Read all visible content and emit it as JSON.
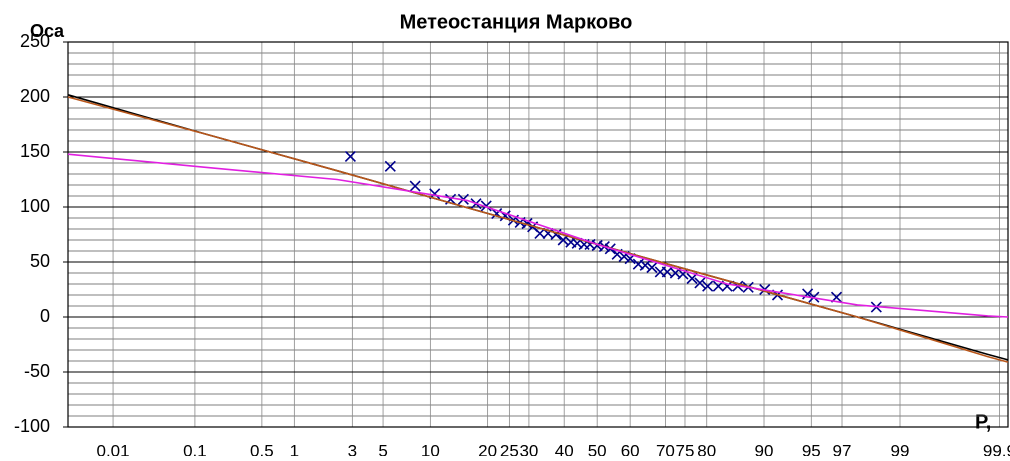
{
  "chart_data": {
    "type": "scatter",
    "title": "Метеостанция Марково",
    "y_label": "Oca",
    "x_label": "P,",
    "x_scale": "probability",
    "xlim": [
      0.0024,
      99.92
    ],
    "xticks": [
      0.01,
      0.1,
      0.5,
      1,
      3,
      5,
      10,
      20,
      25,
      30,
      40,
      50,
      60,
      70,
      75,
      80,
      90,
      95,
      97,
      99,
      99.9
    ],
    "ylim": [
      -100,
      250
    ],
    "yticks": [
      -100,
      -50,
      0,
      50,
      100,
      150,
      200,
      250
    ],
    "y_minor_step": 10,
    "grid": true,
    "series": [
      {
        "style": "marker",
        "color": "#00008b",
        "x": [
          2.9,
          5.6,
          8.1,
          10.6,
          13.0,
          15.2,
          17.6,
          19.7,
          22.0,
          24.0,
          26.0,
          27.7,
          29.5,
          31.0,
          33.0,
          35.3,
          37.6,
          39.7,
          42.0,
          43.9,
          46.0,
          47.8,
          50.0,
          52.2,
          54.0,
          56.1,
          58.2,
          60.0,
          62.4,
          64.4,
          66.3,
          68.6,
          70.5,
          72.6,
          74.5,
          76.7,
          78.5,
          80.2,
          82.4,
          84.1,
          86.0,
          87.7,
          90.1,
          91.7,
          94.7,
          95.2,
          96.7,
          98.4
        ],
        "values": [
          146,
          137,
          119,
          112,
          107,
          107,
          103,
          101,
          94,
          92,
          88,
          86,
          85,
          82,
          76,
          76,
          75,
          70,
          68,
          67,
          66,
          66,
          65,
          64,
          62,
          57,
          55,
          53,
          48,
          47,
          45,
          41,
          41,
          40,
          39,
          35,
          31,
          28,
          28,
          28,
          28,
          27,
          25,
          20,
          21,
          18,
          18,
          9
        ]
      },
      {
        "style": "line",
        "color": "#000000",
        "x": [
          0.0024,
          0.135,
          2.28,
          15.87,
          50,
          84.13,
          97.72,
          99.865,
          99.92
        ],
        "values": [
          202,
          166,
          133,
          99.5,
          66,
          33,
          0,
          -34,
          -39
        ]
      },
      {
        "style": "line",
        "color": "#b8561a",
        "x": [
          0.0024,
          0.135,
          2.28,
          15.87,
          50,
          84.13,
          97.72,
          99.865,
          99.92
        ],
        "values": [
          200,
          166,
          133,
          99.5,
          66,
          33,
          0,
          -36,
          -41
        ]
      },
      {
        "style": "line",
        "color": "#e020e0",
        "x": [
          0.0024,
          0.135,
          2.28,
          15.87,
          50,
          84.13,
          97.72,
          99.865,
          99.92
        ],
        "values": [
          148,
          136,
          125,
          106,
          66,
          30,
          11,
          1,
          0
        ]
      }
    ]
  }
}
